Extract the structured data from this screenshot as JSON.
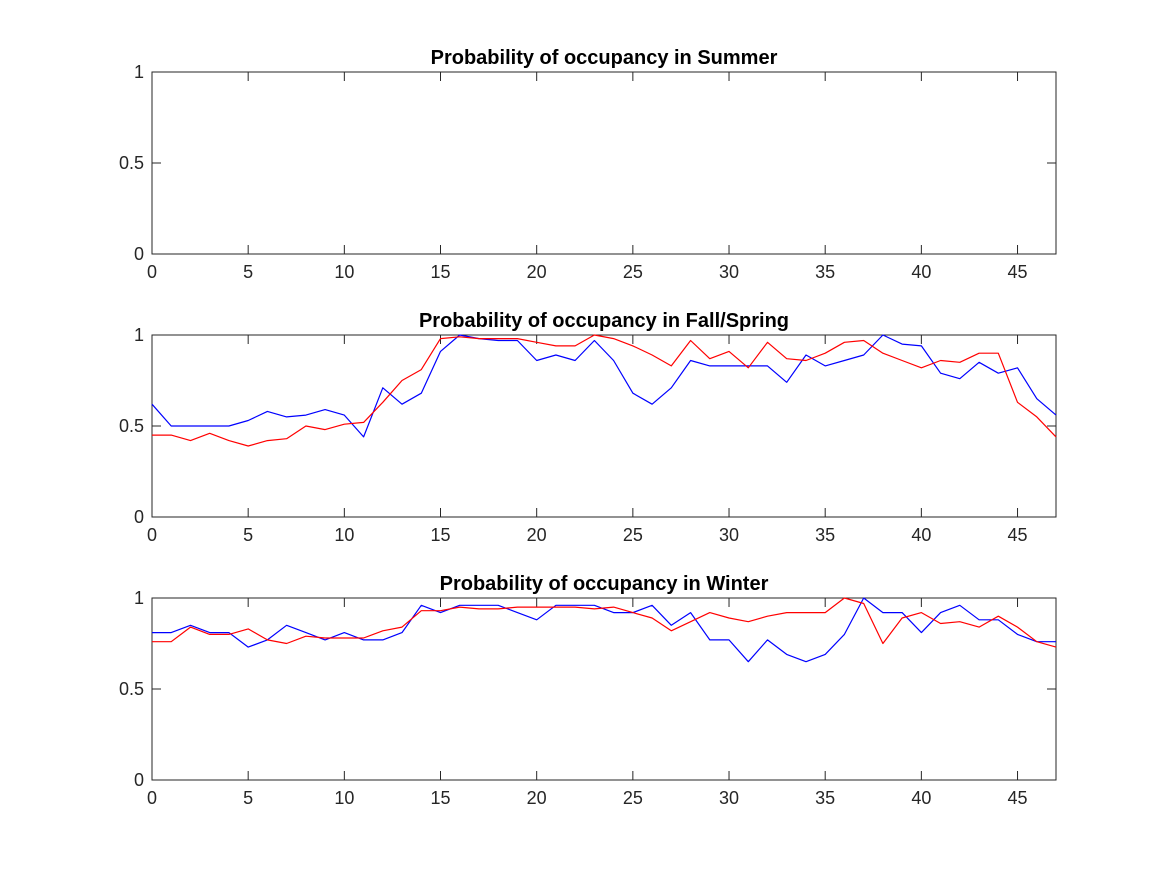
{
  "chart_data": [
    {
      "type": "line",
      "title": "Probability of occupancy in Summer",
      "xlabel": "",
      "ylabel": "",
      "xlim": [
        0,
        47
      ],
      "ylim": [
        0,
        1
      ],
      "xticks": [
        0,
        5,
        10,
        15,
        20,
        25,
        30,
        35,
        40,
        45
      ],
      "yticks": [
        0,
        0.5,
        1
      ],
      "xtick_labels": [
        "0",
        "5",
        "10",
        "15",
        "20",
        "25",
        "30",
        "35",
        "40",
        "45"
      ],
      "ytick_labels": [
        "0",
        "0.5",
        "1"
      ],
      "grid": false,
      "x": [],
      "series": []
    },
    {
      "type": "line",
      "title": "Probability of occupancy in Fall/Spring",
      "xlabel": "",
      "ylabel": "",
      "xlim": [
        0,
        47
      ],
      "ylim": [
        0,
        1
      ],
      "xticks": [
        0,
        5,
        10,
        15,
        20,
        25,
        30,
        35,
        40,
        45
      ],
      "yticks": [
        0,
        0.5,
        1
      ],
      "xtick_labels": [
        "0",
        "5",
        "10",
        "15",
        "20",
        "25",
        "30",
        "35",
        "40",
        "45"
      ],
      "ytick_labels": [
        "0",
        "0.5",
        "1"
      ],
      "grid": false,
      "x": [
        0,
        1,
        2,
        3,
        4,
        5,
        6,
        7,
        8,
        9,
        10,
        11,
        12,
        13,
        14,
        15,
        16,
        17,
        18,
        19,
        20,
        21,
        22,
        23,
        24,
        25,
        26,
        27,
        28,
        29,
        30,
        31,
        32,
        33,
        34,
        35,
        36,
        37,
        38,
        39,
        40,
        41,
        42,
        43,
        44,
        45,
        46,
        47
      ],
      "series": [
        {
          "color": "#0000ff",
          "values": [
            0.62,
            0.5,
            0.5,
            0.5,
            0.5,
            0.53,
            0.58,
            0.55,
            0.56,
            0.59,
            0.56,
            0.44,
            0.71,
            0.62,
            0.68,
            0.91,
            1.0,
            0.98,
            0.97,
            0.97,
            0.86,
            0.89,
            0.86,
            0.97,
            0.86,
            0.68,
            0.62,
            0.71,
            0.86,
            0.83,
            0.83,
            0.83,
            0.83,
            0.74,
            0.89,
            0.83,
            0.86,
            0.89,
            1.0,
            0.95,
            0.94,
            0.79,
            0.76,
            0.85,
            0.79,
            0.82,
            0.65,
            0.56
          ]
        },
        {
          "color": "#ff0000",
          "values": [
            0.45,
            0.45,
            0.42,
            0.46,
            0.42,
            0.39,
            0.42,
            0.43,
            0.5,
            0.48,
            0.51,
            0.52,
            0.63,
            0.75,
            0.81,
            0.98,
            0.99,
            0.98,
            0.98,
            0.98,
            0.96,
            0.94,
            0.94,
            1.0,
            0.98,
            0.94,
            0.89,
            0.83,
            0.97,
            0.87,
            0.91,
            0.82,
            0.96,
            0.87,
            0.86,
            0.9,
            0.96,
            0.97,
            0.9,
            0.86,
            0.82,
            0.86,
            0.85,
            0.9,
            0.9,
            0.63,
            0.55,
            0.44
          ]
        }
      ]
    },
    {
      "type": "line",
      "title": "Probability of occupancy in Winter",
      "xlabel": "",
      "ylabel": "",
      "xlim": [
        0,
        47
      ],
      "ylim": [
        0,
        1
      ],
      "xticks": [
        0,
        5,
        10,
        15,
        20,
        25,
        30,
        35,
        40,
        45
      ],
      "yticks": [
        0,
        0.5,
        1
      ],
      "xtick_labels": [
        "0",
        "5",
        "10",
        "15",
        "20",
        "25",
        "30",
        "35",
        "40",
        "45"
      ],
      "ytick_labels": [
        "0",
        "0.5",
        "1"
      ],
      "grid": false,
      "x": [
        0,
        1,
        2,
        3,
        4,
        5,
        6,
        7,
        8,
        9,
        10,
        11,
        12,
        13,
        14,
        15,
        16,
        17,
        18,
        19,
        20,
        21,
        22,
        23,
        24,
        25,
        26,
        27,
        28,
        29,
        30,
        31,
        32,
        33,
        34,
        35,
        36,
        37,
        38,
        39,
        40,
        41,
        42,
        43,
        44,
        45,
        46,
        47
      ],
      "series": [
        {
          "color": "#0000ff",
          "values": [
            0.81,
            0.81,
            0.85,
            0.81,
            0.81,
            0.73,
            0.77,
            0.85,
            0.81,
            0.77,
            0.81,
            0.77,
            0.77,
            0.81,
            0.96,
            0.92,
            0.96,
            0.96,
            0.96,
            0.92,
            0.88,
            0.96,
            0.96,
            0.96,
            0.92,
            0.92,
            0.96,
            0.85,
            0.92,
            0.77,
            0.77,
            0.65,
            0.77,
            0.69,
            0.65,
            0.69,
            0.8,
            1.0,
            0.92,
            0.92,
            0.81,
            0.92,
            0.96,
            0.88,
            0.88,
            0.8,
            0.76,
            0.76
          ]
        },
        {
          "color": "#ff0000",
          "values": [
            0.76,
            0.76,
            0.84,
            0.8,
            0.8,
            0.83,
            0.77,
            0.75,
            0.79,
            0.78,
            0.78,
            0.78,
            0.82,
            0.84,
            0.93,
            0.93,
            0.95,
            0.94,
            0.94,
            0.95,
            0.95,
            0.95,
            0.95,
            0.94,
            0.95,
            0.92,
            0.89,
            0.82,
            0.87,
            0.92,
            0.89,
            0.87,
            0.9,
            0.92,
            0.92,
            0.92,
            1.0,
            0.97,
            0.75,
            0.89,
            0.92,
            0.86,
            0.87,
            0.84,
            0.9,
            0.84,
            0.76,
            0.73
          ]
        }
      ]
    }
  ]
}
